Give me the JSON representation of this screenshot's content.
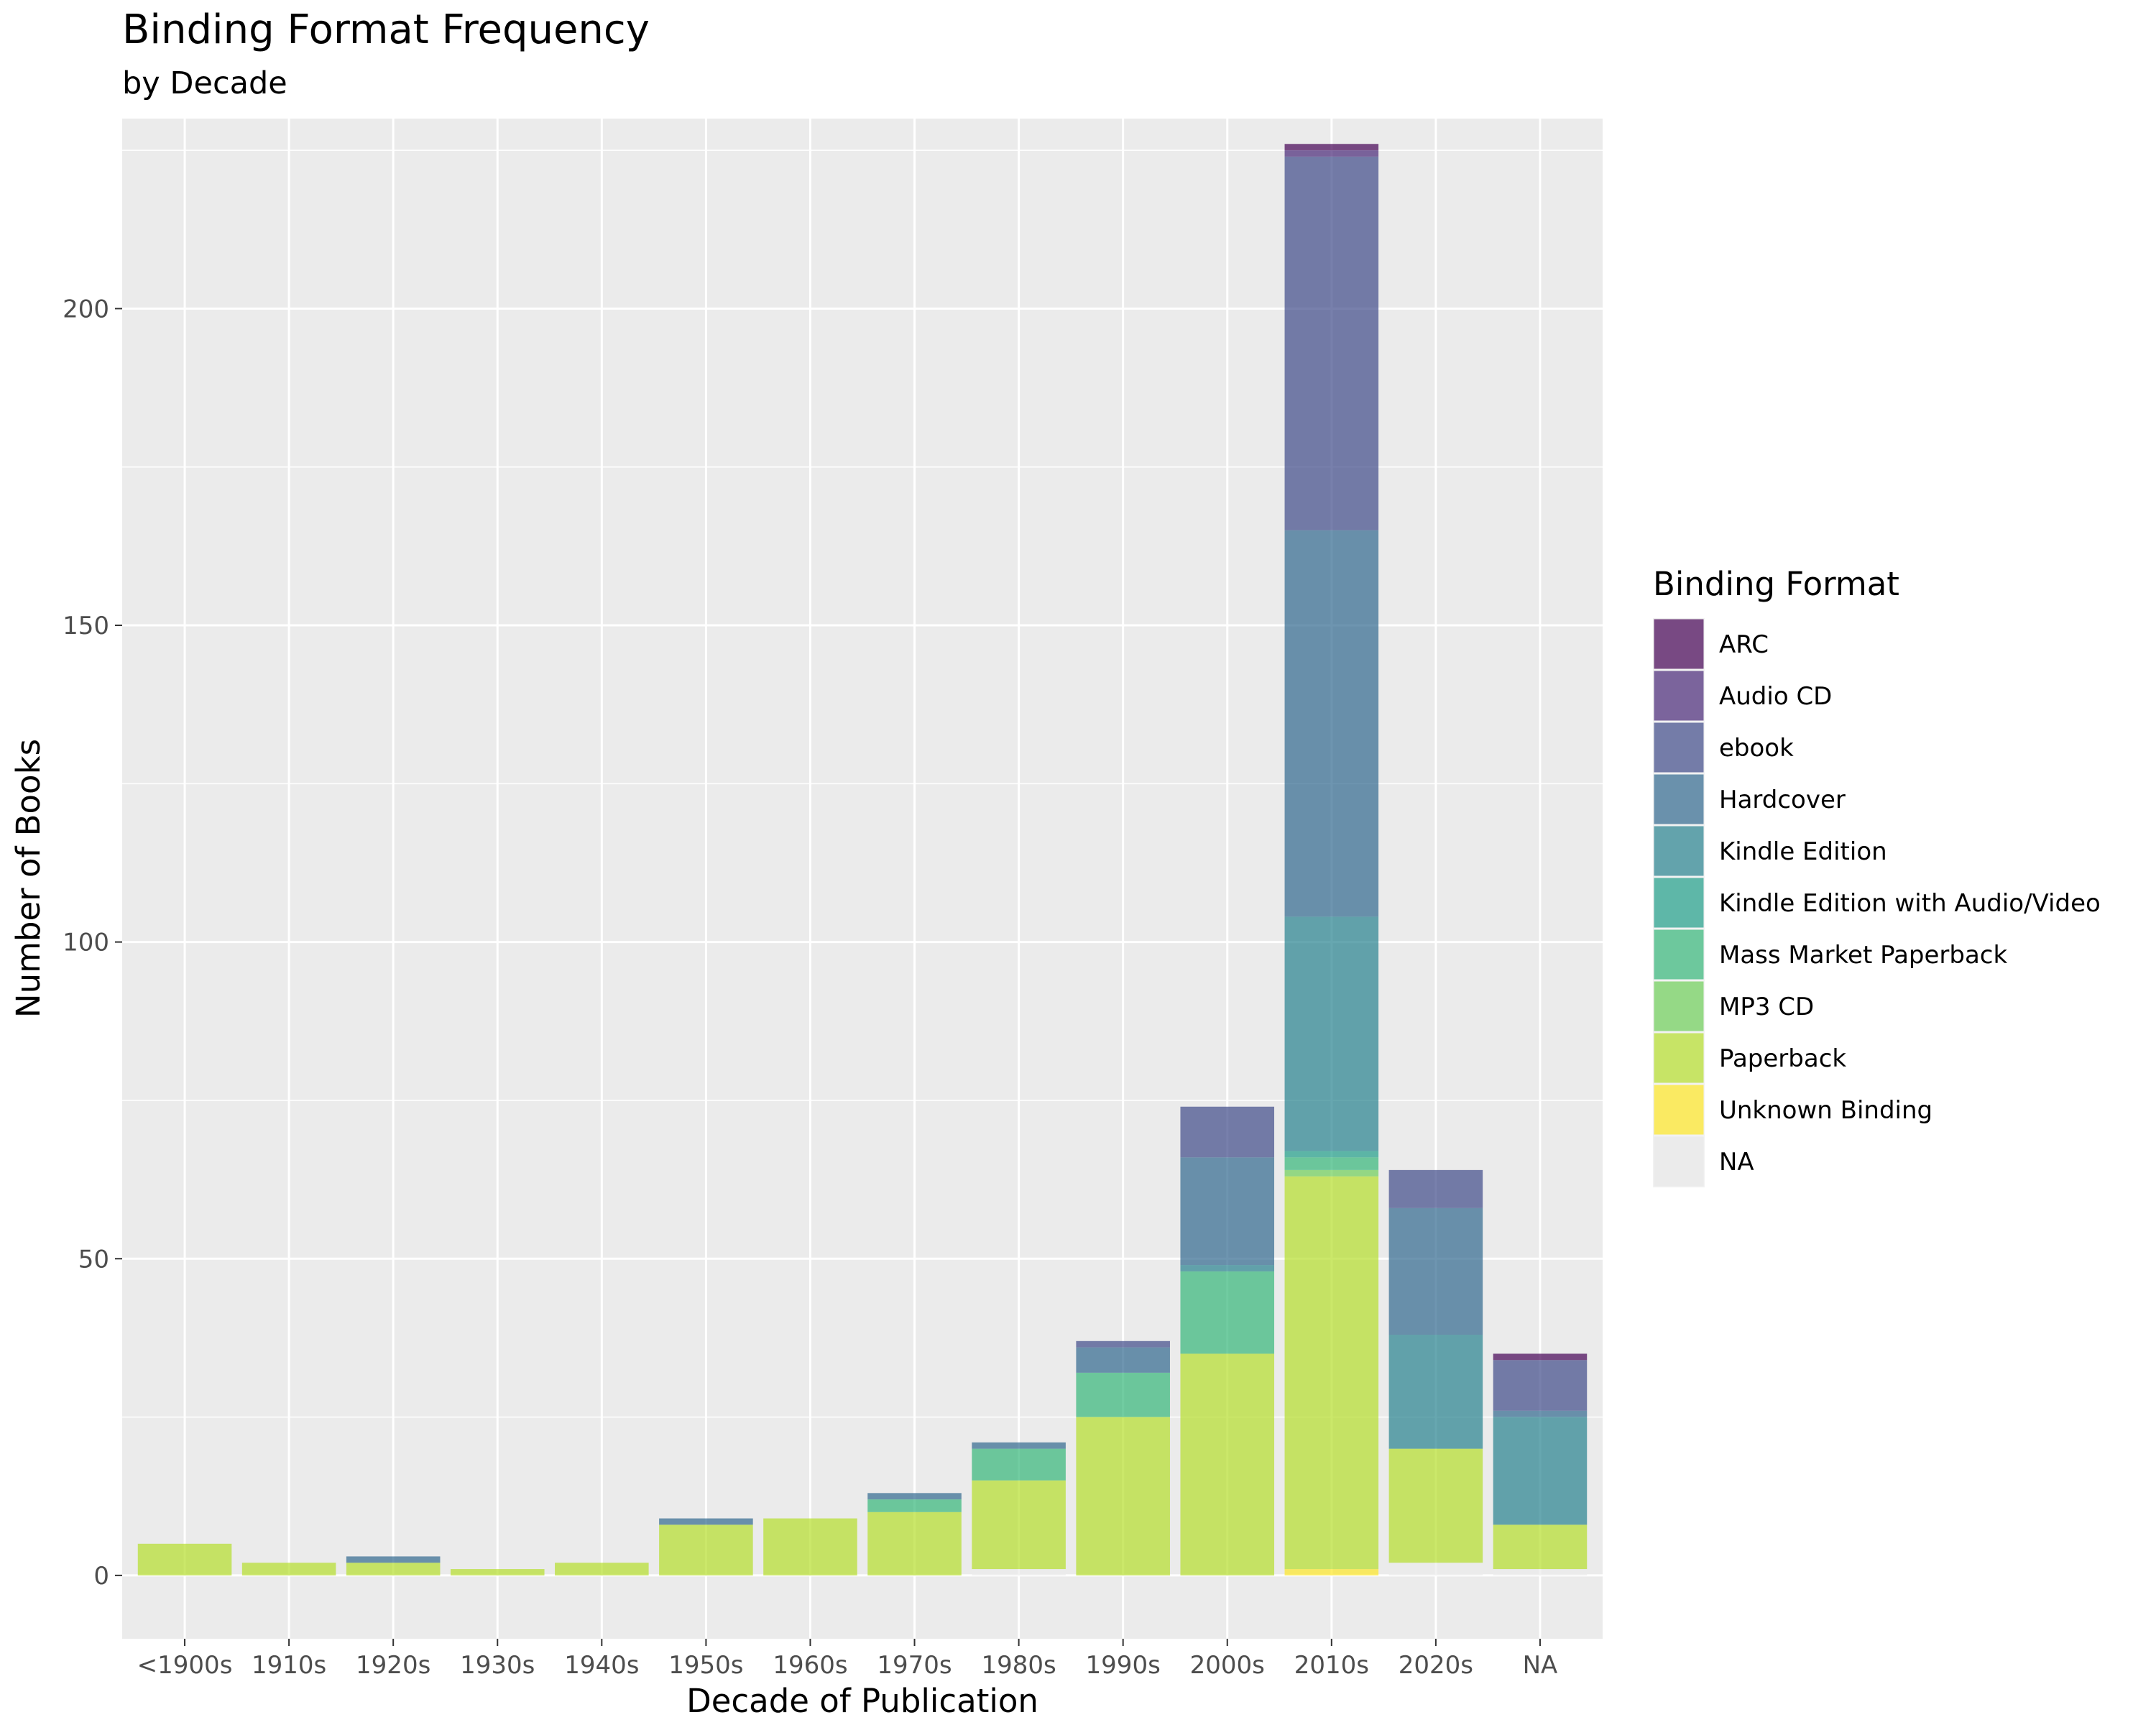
{
  "chart_data": {
    "type": "bar",
    "stacked": true,
    "title": "Binding Format Frequency",
    "subtitle": "by Decade",
    "xlabel": "Decade of Publication",
    "ylabel": "Number of Books",
    "ylim": [
      -10,
      230
    ],
    "yticks": [
      0,
      50,
      100,
      150,
      200
    ],
    "grid": true,
    "legend_title": "Binding Format",
    "legend_position": "right",
    "categories": [
      "<1900s",
      "1910s",
      "1920s",
      "1930s",
      "1940s",
      "1950s",
      "1960s",
      "1970s",
      "1980s",
      "1990s",
      "2000s",
      "2010s",
      "2020s",
      "NA"
    ],
    "series": [
      {
        "name": "NA",
        "color": "#EBEBEB",
        "values": [
          0,
          0,
          0,
          0,
          0,
          0,
          0,
          0,
          1,
          0,
          0,
          0,
          2,
          1
        ]
      },
      {
        "name": "Unknown Binding",
        "color": "#FDE725",
        "values": [
          0,
          0,
          0,
          0,
          0,
          0,
          0,
          0,
          0,
          0,
          0,
          1,
          0,
          0
        ]
      },
      {
        "name": "Paperback",
        "color": "#B5DE2B",
        "values": [
          5,
          2,
          2,
          1,
          2,
          8,
          9,
          10,
          14,
          25,
          35,
          62,
          18,
          7
        ]
      },
      {
        "name": "MP3 CD",
        "color": "#6ECE58",
        "values": [
          0,
          0,
          0,
          0,
          0,
          0,
          0,
          0,
          0,
          0,
          0,
          1,
          0,
          0
        ]
      },
      {
        "name": "Mass Market Paperback",
        "color": "#35B779",
        "values": [
          0,
          0,
          0,
          0,
          0,
          0,
          0,
          2,
          5,
          7,
          13,
          2,
          0,
          0
        ]
      },
      {
        "name": "Kindle Edition with Audio/Video",
        "color": "#1F9E89",
        "values": [
          0,
          0,
          0,
          0,
          0,
          0,
          0,
          0,
          0,
          0,
          0,
          1,
          0,
          0
        ]
      },
      {
        "name": "Kindle Edition",
        "color": "#26828E",
        "values": [
          0,
          0,
          0,
          0,
          0,
          0,
          0,
          0,
          0,
          0,
          1,
          37,
          18,
          17
        ]
      },
      {
        "name": "Hardcover",
        "color": "#31688E",
        "values": [
          0,
          0,
          1,
          0,
          0,
          1,
          0,
          1,
          1,
          4,
          17,
          61,
          20,
          1
        ]
      },
      {
        "name": "ebook",
        "color": "#3E4A89",
        "values": [
          0,
          0,
          0,
          0,
          0,
          0,
          0,
          0,
          0,
          1,
          8,
          59,
          6,
          8
        ]
      },
      {
        "name": "Audio CD",
        "color": "#482878",
        "values": [
          0,
          0,
          0,
          0,
          0,
          0,
          0,
          0,
          0,
          0,
          0,
          1,
          0,
          0
        ]
      },
      {
        "name": "ARC",
        "color": "#440154",
        "values": [
          0,
          0,
          0,
          0,
          0,
          0,
          0,
          0,
          0,
          0,
          0,
          1,
          0,
          1
        ]
      }
    ],
    "legend_order": [
      "ARC",
      "Audio CD",
      "ebook",
      "Hardcover",
      "Kindle Edition",
      "Kindle Edition with Audio/Video",
      "Mass Market Paperback",
      "MP3 CD",
      "Paperback",
      "Unknown Binding",
      "NA"
    ]
  }
}
